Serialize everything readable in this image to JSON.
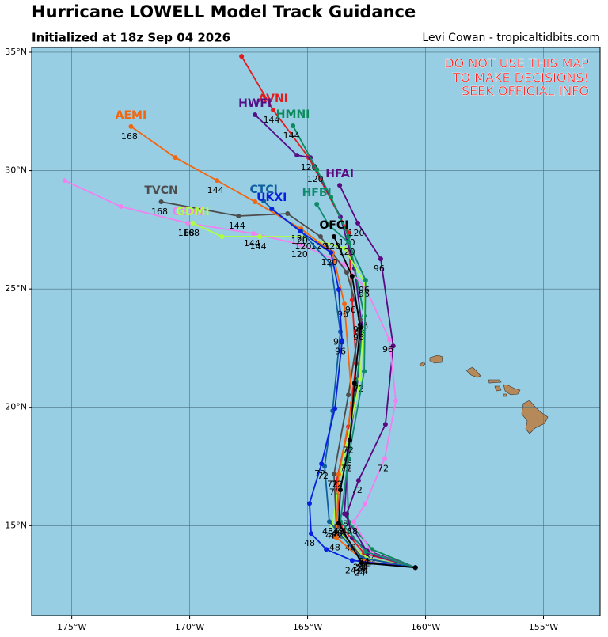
{
  "chart_data": {
    "type": "track",
    "title": "Hurricane LOWELL Model Track Guidance",
    "subtitle": "Initialized at 18z Sep 04 2026",
    "credit": "Levi Cowan - tropicaltidbits.com",
    "annotations": [
      "DO NOT USE THIS MAP",
      "TO MAKE DECISIONS!",
      "SEEK OFFICIAL INFO"
    ],
    "xlim": [
      -176.7,
      -152.6
    ],
    "ylim": [
      11.2,
      35.2
    ],
    "xticks": [
      {
        "value": -175,
        "label": "175°W"
      },
      {
        "value": -170,
        "label": "170°W"
      },
      {
        "value": -165,
        "label": "165°W"
      },
      {
        "value": -160,
        "label": "160°W"
      },
      {
        "value": -155,
        "label": "155°W"
      }
    ],
    "yticks": [
      {
        "value": 15,
        "label": "15°N"
      },
      {
        "value": 20,
        "label": "20°N"
      },
      {
        "value": 25,
        "label": "25°N"
      },
      {
        "value": 30,
        "label": "30°N"
      },
      {
        "value": 35,
        "label": "35°N"
      }
    ],
    "grid": true,
    "series": [
      {
        "name": "AVNI",
        "color": "#e41a1c",
        "x": [
          -160.43,
          -162.6,
          -163.61,
          -163.78,
          -163.27,
          -162.94,
          -163.11,
          -163.27,
          -164.95,
          -166.46,
          -167.8
        ],
        "values": [
          13.23,
          13.83,
          15.0,
          16.84,
          19.18,
          21.86,
          24.53,
          27.37,
          30.55,
          32.56,
          34.83
        ],
        "point_labels": [
          null,
          "24",
          "48",
          "72",
          null,
          null,
          "96",
          "120",
          null,
          "144",
          null
        ]
      },
      {
        "name": "HWFI",
        "color": "#54108a",
        "x": [
          -160.43,
          -162.44,
          -163.44,
          -163.27,
          -162.87,
          -162.71,
          -163.01,
          -163.61,
          -164.88,
          -165.45,
          -167.23
        ],
        "values": [
          13.23,
          13.83,
          15.5,
          18.18,
          21.19,
          23.53,
          25.87,
          28.04,
          30.55,
          30.65,
          32.36
        ],
        "point_labels": [
          null,
          "24",
          "48",
          "72",
          null,
          "96",
          null,
          null,
          "120",
          null,
          null
        ]
      },
      {
        "name": "HMNI",
        "color": "#0b8a5c",
        "x": [
          -160.43,
          -162.27,
          -163.27,
          -163.34,
          -162.94,
          -162.6,
          -163.27,
          -164.01,
          -164.61,
          -165.62
        ],
        "values": [
          13.23,
          14.0,
          15.17,
          17.84,
          20.85,
          23.86,
          27.21,
          28.88,
          30.05,
          31.89
        ],
        "point_labels": [
          null,
          "24",
          "48",
          "72",
          null,
          "96",
          null,
          null,
          "120",
          "144"
        ]
      },
      {
        "name": "HFAI",
        "color": "#5c0880",
        "x": [
          -160.43,
          -162.44,
          -163.11,
          -163.34,
          -162.84,
          -161.7,
          -161.37,
          -161.9,
          -162.87,
          -163.64
        ],
        "values": [
          13.23,
          13.93,
          14.5,
          15.5,
          16.91,
          19.28,
          22.59,
          26.27,
          27.78,
          29.38
        ],
        "point_labels": [
          null,
          "24",
          "48",
          null,
          "72",
          null,
          null,
          "96",
          "120",
          null
        ]
      },
      {
        "name": "CEMI",
        "color": "#f280f0",
        "x": [
          -160.43,
          -162.27,
          -163.04,
          -162.57,
          -161.73,
          -161.26,
          -161.53,
          -162.54,
          -163.44,
          -165.28,
          -167.29,
          -170.08,
          -172.92,
          -175.3
        ],
        "values": [
          13.23,
          13.83,
          15.17,
          15.9,
          17.84,
          20.28,
          22.86,
          25.03,
          26.04,
          26.87,
          27.34,
          27.78,
          28.48,
          29.58
        ],
        "point_labels": [
          null,
          "24",
          "48",
          null,
          "72",
          null,
          "96",
          null,
          null,
          "120",
          "144",
          "168",
          null,
          null
        ]
      },
      {
        "name": "GDMI",
        "color": "#adff40",
        "x": [
          -160.43,
          -162.6,
          -163.94,
          -163.61,
          -162.77,
          -162.54,
          -163.44,
          -165.12,
          -167.03,
          -168.63,
          -169.87
        ],
        "values": [
          13.23,
          13.66,
          15.0,
          17.17,
          21.19,
          25.2,
          26.71,
          27.21,
          27.21,
          27.21,
          27.78
        ],
        "point_labels": [
          null,
          "24",
          "48",
          null,
          "72",
          "96",
          null,
          "120",
          "144",
          null,
          "168"
        ]
      },
      {
        "name": "TVCN",
        "color": "#4d4d4d",
        "x": [
          -160.43,
          -162.67,
          -163.78,
          -163.88,
          -163.27,
          -162.77,
          -163.34,
          -164.45,
          -165.85,
          -167.93,
          -171.21
        ],
        "values": [
          13.23,
          13.63,
          15.0,
          17.17,
          20.52,
          23.7,
          25.7,
          27.21,
          28.18,
          28.08,
          28.68
        ],
        "point_labels": [
          null,
          "24",
          "48",
          "72",
          null,
          "96",
          null,
          "120",
          null,
          "144",
          "168"
        ]
      },
      {
        "name": "AEMI",
        "color": "#f26610",
        "x": [
          -160.43,
          -162.6,
          -163.78,
          -163.68,
          -163.11,
          -163.44,
          -163.94,
          -165.28,
          -167.23,
          -168.84,
          -170.61,
          -172.49
        ],
        "values": [
          13.23,
          13.49,
          14.5,
          17.17,
          20.18,
          24.36,
          26.54,
          27.54,
          28.68,
          29.58,
          30.55,
          31.86
        ],
        "point_labels": [
          null,
          "24",
          "48",
          "72",
          null,
          "96",
          null,
          "120",
          null,
          "144",
          null,
          "168"
        ]
      },
      {
        "name": "CTCI",
        "color": "#0f5fa0",
        "x": [
          -160.43,
          -162.77,
          -164.08,
          -164.28,
          -163.94,
          -163.61,
          -164.01,
          -165.28,
          -166.52,
          -166.86
        ],
        "values": [
          13.23,
          13.66,
          15.17,
          17.51,
          19.85,
          23.19,
          26.04,
          27.44,
          28.38,
          28.71
        ],
        "point_labels": [
          null,
          "24",
          "48",
          "72",
          null,
          "96",
          null,
          "120",
          null,
          null
        ]
      },
      {
        "name": "UKXI",
        "color": "#0a20e0",
        "x": [
          -160.43,
          -163.11,
          -164.21,
          -164.85,
          -164.92,
          -164.41,
          -163.84,
          -163.54,
          -163.68,
          -164.01,
          -165.32,
          -166.52
        ],
        "values": [
          13.23,
          13.53,
          14.0,
          14.67,
          15.94,
          17.61,
          19.95,
          22.79,
          24.97,
          26.54,
          27.44,
          28.38
        ],
        "point_labels": [
          null,
          "24",
          null,
          "48",
          null,
          "72",
          null,
          "96",
          null,
          "120",
          null,
          null
        ]
      },
      {
        "name": "HFBI",
        "color": "#0f8a6c",
        "x": [
          -160.43,
          -162.54,
          -163.61,
          -163.27,
          -162.6,
          -162.54,
          -163.27,
          -164.11,
          -164.61
        ],
        "values": [
          13.23,
          13.9,
          15.17,
          17.84,
          21.52,
          25.37,
          26.97,
          27.71,
          28.58
        ],
        "point_labels": [
          null,
          "24",
          "48",
          "72",
          null,
          "96",
          "120",
          null,
          null
        ]
      },
      {
        "name": "OFCI",
        "color": "#000000",
        "x": [
          -160.43,
          -162.71,
          -163.68,
          -163.61,
          -163.21,
          -163.01,
          -162.77,
          -163.11,
          -163.88
        ],
        "values": [
          13.23,
          13.43,
          15.1,
          16.51,
          18.61,
          21.02,
          23.36,
          25.54,
          27.21
        ],
        "point_labels": [
          null,
          "24",
          "48",
          null,
          "72",
          null,
          "96",
          null,
          "120"
        ]
      }
    ]
  }
}
